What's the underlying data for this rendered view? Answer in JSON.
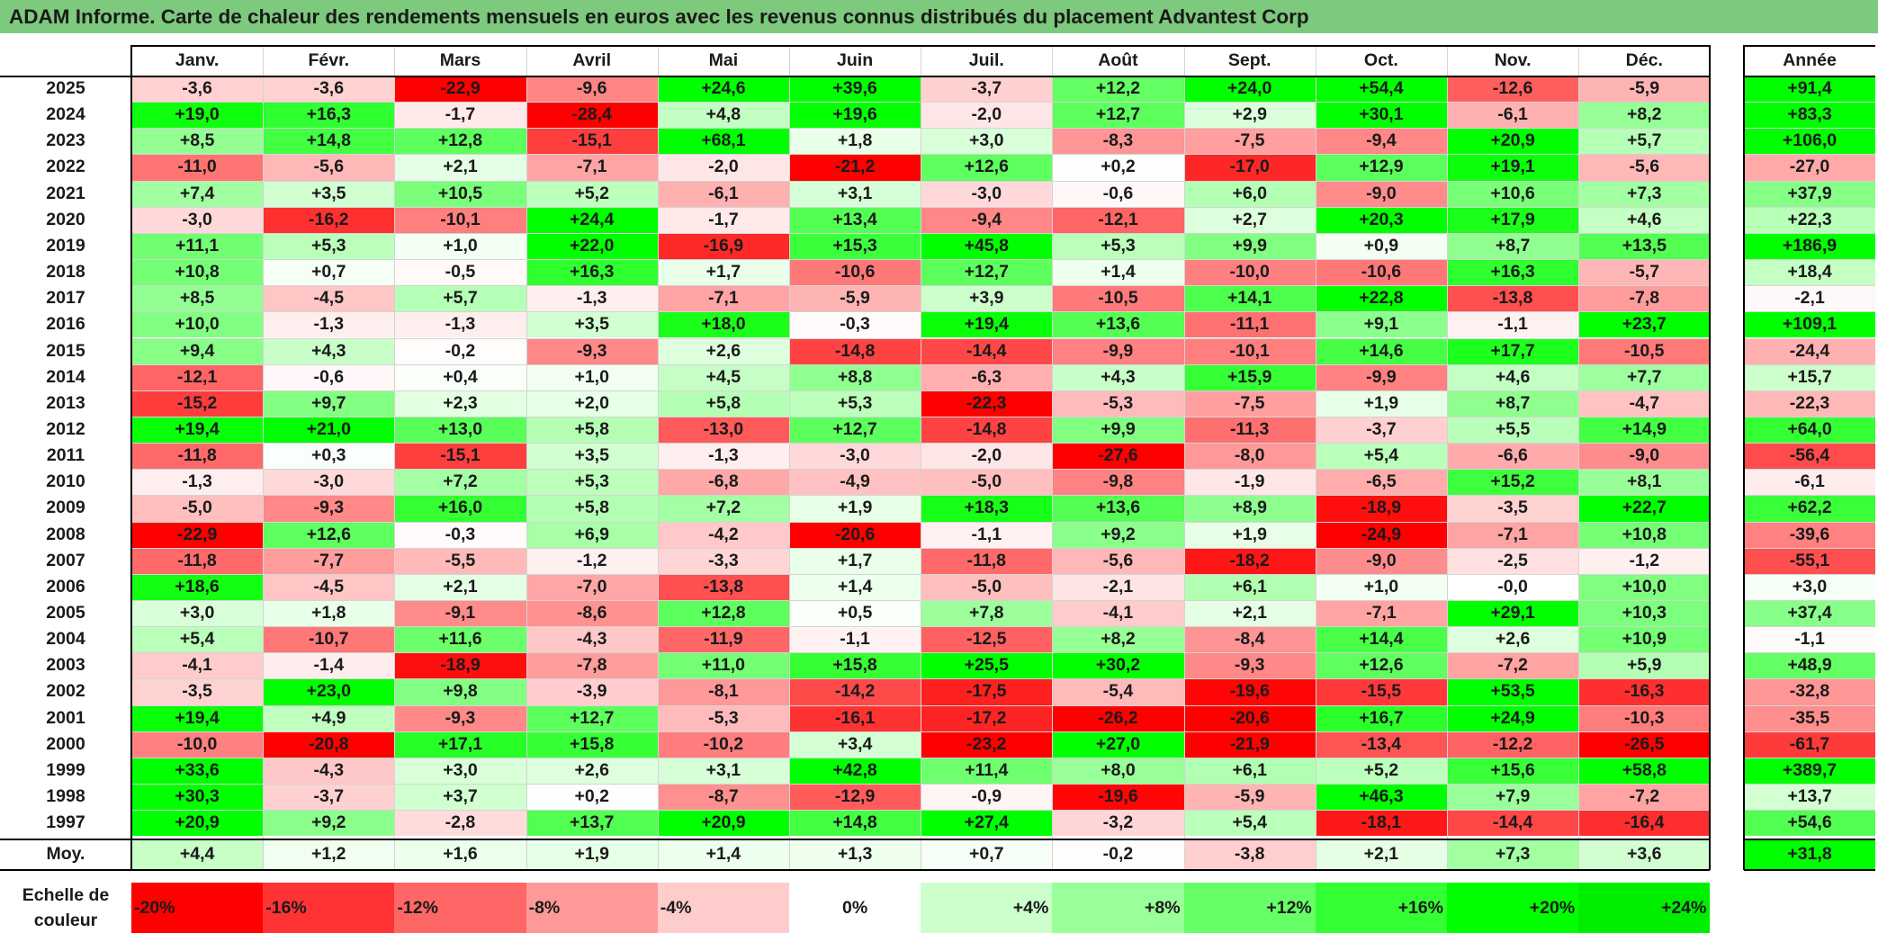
{
  "title": "ADAM Informe. Carte de chaleur des rendements mensuels en euros avec les revenus connus distribués du placement Advantest Corp",
  "chart_data": {
    "type": "heatmap",
    "title": "ADAM Informe. Carte de chaleur des rendements mensuels en euros avec les revenus connus distribués du placement Advantest Corp",
    "columns": [
      "Janv.",
      "Févr.",
      "Mars",
      "Avril",
      "Mai",
      "Juin",
      "Juil.",
      "Août",
      "Sept.",
      "Oct.",
      "Nov.",
      "Déc."
    ],
    "year_column_label": "Année",
    "rows": [
      {
        "year": "2025",
        "values": [
          "-3,6",
          "-3,6",
          "-22,9",
          "-9,6",
          "+24,6",
          "+39,6",
          "-3,7",
          "+12,2",
          "+24,0",
          "+54,4",
          "-12,6",
          "-5,9"
        ],
        "annual": "+91,4"
      },
      {
        "year": "2024",
        "values": [
          "+19,0",
          "+16,3",
          "-1,7",
          "-28,4",
          "+4,8",
          "+19,6",
          "-2,0",
          "+12,7",
          "+2,9",
          "+30,1",
          "-6,1",
          "+8,2"
        ],
        "annual": "+83,3"
      },
      {
        "year": "2023",
        "values": [
          "+8,5",
          "+14,8",
          "+12,8",
          "-15,1",
          "+68,1",
          "+1,8",
          "+3,0",
          "-8,3",
          "-7,5",
          "-9,4",
          "+20,9",
          "+5,7"
        ],
        "annual": "+106,0"
      },
      {
        "year": "2022",
        "values": [
          "-11,0",
          "-5,6",
          "+2,1",
          "-7,1",
          "-2,0",
          "-21,2",
          "+12,6",
          "+0,2",
          "-17,0",
          "+12,9",
          "+19,1",
          "-5,6"
        ],
        "annual": "-27,0"
      },
      {
        "year": "2021",
        "values": [
          "+7,4",
          "+3,5",
          "+10,5",
          "+5,2",
          "-6,1",
          "+3,1",
          "-3,0",
          "-0,6",
          "+6,0",
          "-9,0",
          "+10,6",
          "+7,3"
        ],
        "annual": "+37,9"
      },
      {
        "year": "2020",
        "values": [
          "-3,0",
          "-16,2",
          "-10,1",
          "+24,4",
          "-1,7",
          "+13,4",
          "-9,4",
          "-12,1",
          "+2,7",
          "+20,3",
          "+17,9",
          "+4,6"
        ],
        "annual": "+22,3"
      },
      {
        "year": "2019",
        "values": [
          "+11,1",
          "+5,3",
          "+1,0",
          "+22,0",
          "-16,9",
          "+15,3",
          "+45,8",
          "+5,3",
          "+9,9",
          "+0,9",
          "+8,7",
          "+13,5"
        ],
        "annual": "+186,9"
      },
      {
        "year": "2018",
        "values": [
          "+10,8",
          "+0,7",
          "-0,5",
          "+16,3",
          "+1,7",
          "-10,6",
          "+12,7",
          "+1,4",
          "-10,0",
          "-10,6",
          "+16,3",
          "-5,7"
        ],
        "annual": "+18,4"
      },
      {
        "year": "2017",
        "values": [
          "+8,5",
          "-4,5",
          "+5,7",
          "-1,3",
          "-7,1",
          "-5,9",
          "+3,9",
          "-10,5",
          "+14,1",
          "+22,8",
          "-13,8",
          "-7,8"
        ],
        "annual": "-2,1"
      },
      {
        "year": "2016",
        "values": [
          "+10,0",
          "-1,3",
          "-1,3",
          "+3,5",
          "+18,0",
          "-0,3",
          "+19,4",
          "+13,6",
          "-11,1",
          "+9,1",
          "-1,1",
          "+23,7"
        ],
        "annual": "+109,1"
      },
      {
        "year": "2015",
        "values": [
          "+9,4",
          "+4,3",
          "-0,2",
          "-9,3",
          "+2,6",
          "-14,8",
          "-14,4",
          "-9,9",
          "-10,1",
          "+14,6",
          "+17,7",
          "-10,5"
        ],
        "annual": "-24,4"
      },
      {
        "year": "2014",
        "values": [
          "-12,1",
          "-0,6",
          "+0,4",
          "+1,0",
          "+4,5",
          "+8,8",
          "-6,3",
          "+4,3",
          "+15,9",
          "-9,9",
          "+4,6",
          "+7,7"
        ],
        "annual": "+15,7"
      },
      {
        "year": "2013",
        "values": [
          "-15,2",
          "+9,7",
          "+2,3",
          "+2,0",
          "+5,8",
          "+5,3",
          "-22,3",
          "-5,3",
          "-7,5",
          "+1,9",
          "+8,7",
          "-4,7"
        ],
        "annual": "-22,3"
      },
      {
        "year": "2012",
        "values": [
          "+19,4",
          "+21,0",
          "+13,0",
          "+5,8",
          "-13,0",
          "+12,7",
          "-14,8",
          "+9,9",
          "-11,3",
          "-3,7",
          "+5,5",
          "+14,9"
        ],
        "annual": "+64,0"
      },
      {
        "year": "2011",
        "values": [
          "-11,8",
          "+0,3",
          "-15,1",
          "+3,5",
          "-1,3",
          "-3,0",
          "-2,0",
          "-27,6",
          "-8,0",
          "+5,4",
          "-6,6",
          "-9,0"
        ],
        "annual": "-56,4"
      },
      {
        "year": "2010",
        "values": [
          "-1,3",
          "-3,0",
          "+7,2",
          "+5,3",
          "-6,8",
          "-4,9",
          "-5,0",
          "-9,8",
          "-1,9",
          "-6,5",
          "+15,2",
          "+8,1"
        ],
        "annual": "-6,1"
      },
      {
        "year": "2009",
        "values": [
          "-5,0",
          "-9,3",
          "+16,0",
          "+5,8",
          "+7,2",
          "+1,9",
          "+18,3",
          "+13,6",
          "+8,9",
          "-18,9",
          "-3,5",
          "+22,7"
        ],
        "annual": "+62,2"
      },
      {
        "year": "2008",
        "values": [
          "-22,9",
          "+12,6",
          "-0,3",
          "+6,9",
          "-4,2",
          "-20,6",
          "-1,1",
          "+9,2",
          "+1,9",
          "-24,9",
          "-7,1",
          "+10,8"
        ],
        "annual": "-39,6"
      },
      {
        "year": "2007",
        "values": [
          "-11,8",
          "-7,7",
          "-5,5",
          "-1,2",
          "-3,3",
          "+1,7",
          "-11,8",
          "-5,6",
          "-18,2",
          "-9,0",
          "-2,5",
          "-1,2"
        ],
        "annual": "-55,1"
      },
      {
        "year": "2006",
        "values": [
          "+18,6",
          "-4,5",
          "+2,1",
          "-7,0",
          "-13,8",
          "+1,4",
          "-5,0",
          "-2,1",
          "+6,1",
          "+1,0",
          "-0,0",
          "+10,0"
        ],
        "annual": "+3,0"
      },
      {
        "year": "2005",
        "values": [
          "+3,0",
          "+1,8",
          "-9,1",
          "-8,6",
          "+12,8",
          "+0,5",
          "+7,8",
          "-4,1",
          "+2,1",
          "-7,1",
          "+29,1",
          "+10,3"
        ],
        "annual": "+37,4"
      },
      {
        "year": "2004",
        "values": [
          "+5,4",
          "-10,7",
          "+11,6",
          "-4,3",
          "-11,9",
          "-1,1",
          "-12,5",
          "+8,2",
          "-8,4",
          "+14,4",
          "+2,6",
          "+10,9"
        ],
        "annual": "-1,1"
      },
      {
        "year": "2003",
        "values": [
          "-4,1",
          "-1,4",
          "-18,9",
          "-7,8",
          "+11,0",
          "+15,8",
          "+25,5",
          "+30,2",
          "-9,3",
          "+12,6",
          "-7,2",
          "+5,9"
        ],
        "annual": "+48,9"
      },
      {
        "year": "2002",
        "values": [
          "-3,5",
          "+23,0",
          "+9,8",
          "-3,9",
          "-8,1",
          "-14,2",
          "-17,5",
          "-5,4",
          "-19,6",
          "-15,5",
          "+53,5",
          "-16,3"
        ],
        "annual": "-32,8"
      },
      {
        "year": "2001",
        "values": [
          "+19,4",
          "+4,9",
          "-9,3",
          "+12,7",
          "-5,3",
          "-16,1",
          "-17,2",
          "-26,2",
          "-20,6",
          "+16,7",
          "+24,9",
          "-10,3"
        ],
        "annual": "-35,5"
      },
      {
        "year": "2000",
        "values": [
          "-10,0",
          "-20,8",
          "+17,1",
          "+15,8",
          "-10,2",
          "+3,4",
          "-23,2",
          "+27,0",
          "-21,9",
          "-13,4",
          "-12,2",
          "-26,5"
        ],
        "annual": "-61,7"
      },
      {
        "year": "1999",
        "values": [
          "+33,6",
          "-4,3",
          "+3,0",
          "+2,6",
          "+3,1",
          "+42,8",
          "+11,4",
          "+8,0",
          "+6,1",
          "+5,2",
          "+15,6",
          "+58,8"
        ],
        "annual": "+389,7"
      },
      {
        "year": "1998",
        "values": [
          "+30,3",
          "-3,7",
          "+3,7",
          "+0,2",
          "-8,7",
          "-12,9",
          "-0,9",
          "-19,6",
          "-5,9",
          "+46,3",
          "+7,9",
          "-7,2"
        ],
        "annual": "+13,7"
      },
      {
        "year": "1997",
        "values": [
          "+20,9",
          "+9,2",
          "-2,8",
          "+13,7",
          "+20,9",
          "+14,8",
          "+27,4",
          "-3,2",
          "+5,4",
          "-18,1",
          "-14,4",
          "-16,4"
        ],
        "annual": "+54,6"
      }
    ],
    "average": {
      "label": "Moy.",
      "values": [
        "+4,4",
        "+1,2",
        "+1,6",
        "+1,9",
        "+1,4",
        "+1,3",
        "+0,7",
        "-0,2",
        "-3,8",
        "+2,1",
        "+7,3",
        "+3,6"
      ],
      "annual": "+31,8"
    },
    "color_scale": {
      "label": "Echelle de couleur",
      "stops": [
        {
          "label": "-20%",
          "value": -20,
          "color": "#ff0000"
        },
        {
          "label": "-16%",
          "value": -16,
          "color": "#ff3333"
        },
        {
          "label": "-12%",
          "value": -12,
          "color": "#ff6666"
        },
        {
          "label": "-8%",
          "value": -8,
          "color": "#ff9999"
        },
        {
          "label": "-4%",
          "value": -4,
          "color": "#ffcccc"
        },
        {
          "label": "0%",
          "value": 0,
          "color": "#ffffff"
        },
        {
          "label": "+4%",
          "value": 4,
          "color": "#ccffcc"
        },
        {
          "label": "+8%",
          "value": 8,
          "color": "#99ff99"
        },
        {
          "label": "+12%",
          "value": 12,
          "color": "#66ff66"
        },
        {
          "label": "+16%",
          "value": 16,
          "color": "#33ff33"
        },
        {
          "label": "+20%",
          "value": 20,
          "color": "#00ff00"
        },
        {
          "label": "+24%",
          "value": 24,
          "color": "#00ee00"
        }
      ]
    }
  }
}
